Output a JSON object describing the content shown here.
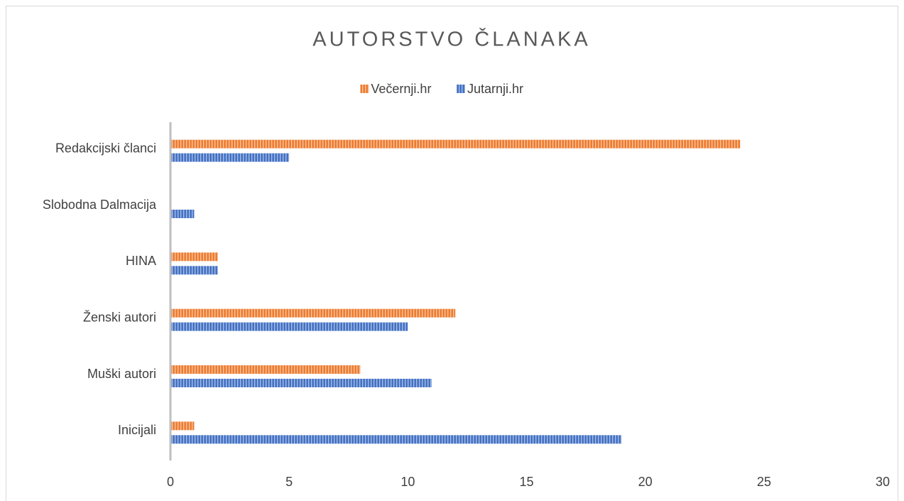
{
  "chart_data": {
    "type": "hbar",
    "title": "AUTORSTVO ČLANAKA",
    "categories": [
      "Inicijali",
      "Muški autori",
      "Ženski autori",
      "HINA",
      "Slobodna Dalmacija",
      "Redakcijski članci"
    ],
    "series": [
      {
        "name": "Večernji.hr",
        "color": "#ed7d31",
        "values": [
          1,
          8,
          12,
          2,
          0,
          24
        ]
      },
      {
        "name": "Jutarnji.hr",
        "color": "#4472c4",
        "values": [
          19,
          11,
          10,
          2,
          1,
          5
        ]
      }
    ],
    "xlim": [
      0,
      30
    ],
    "xticks": [
      0,
      5,
      10,
      15,
      20,
      25,
      30
    ],
    "grid": false,
    "legend": "top"
  }
}
